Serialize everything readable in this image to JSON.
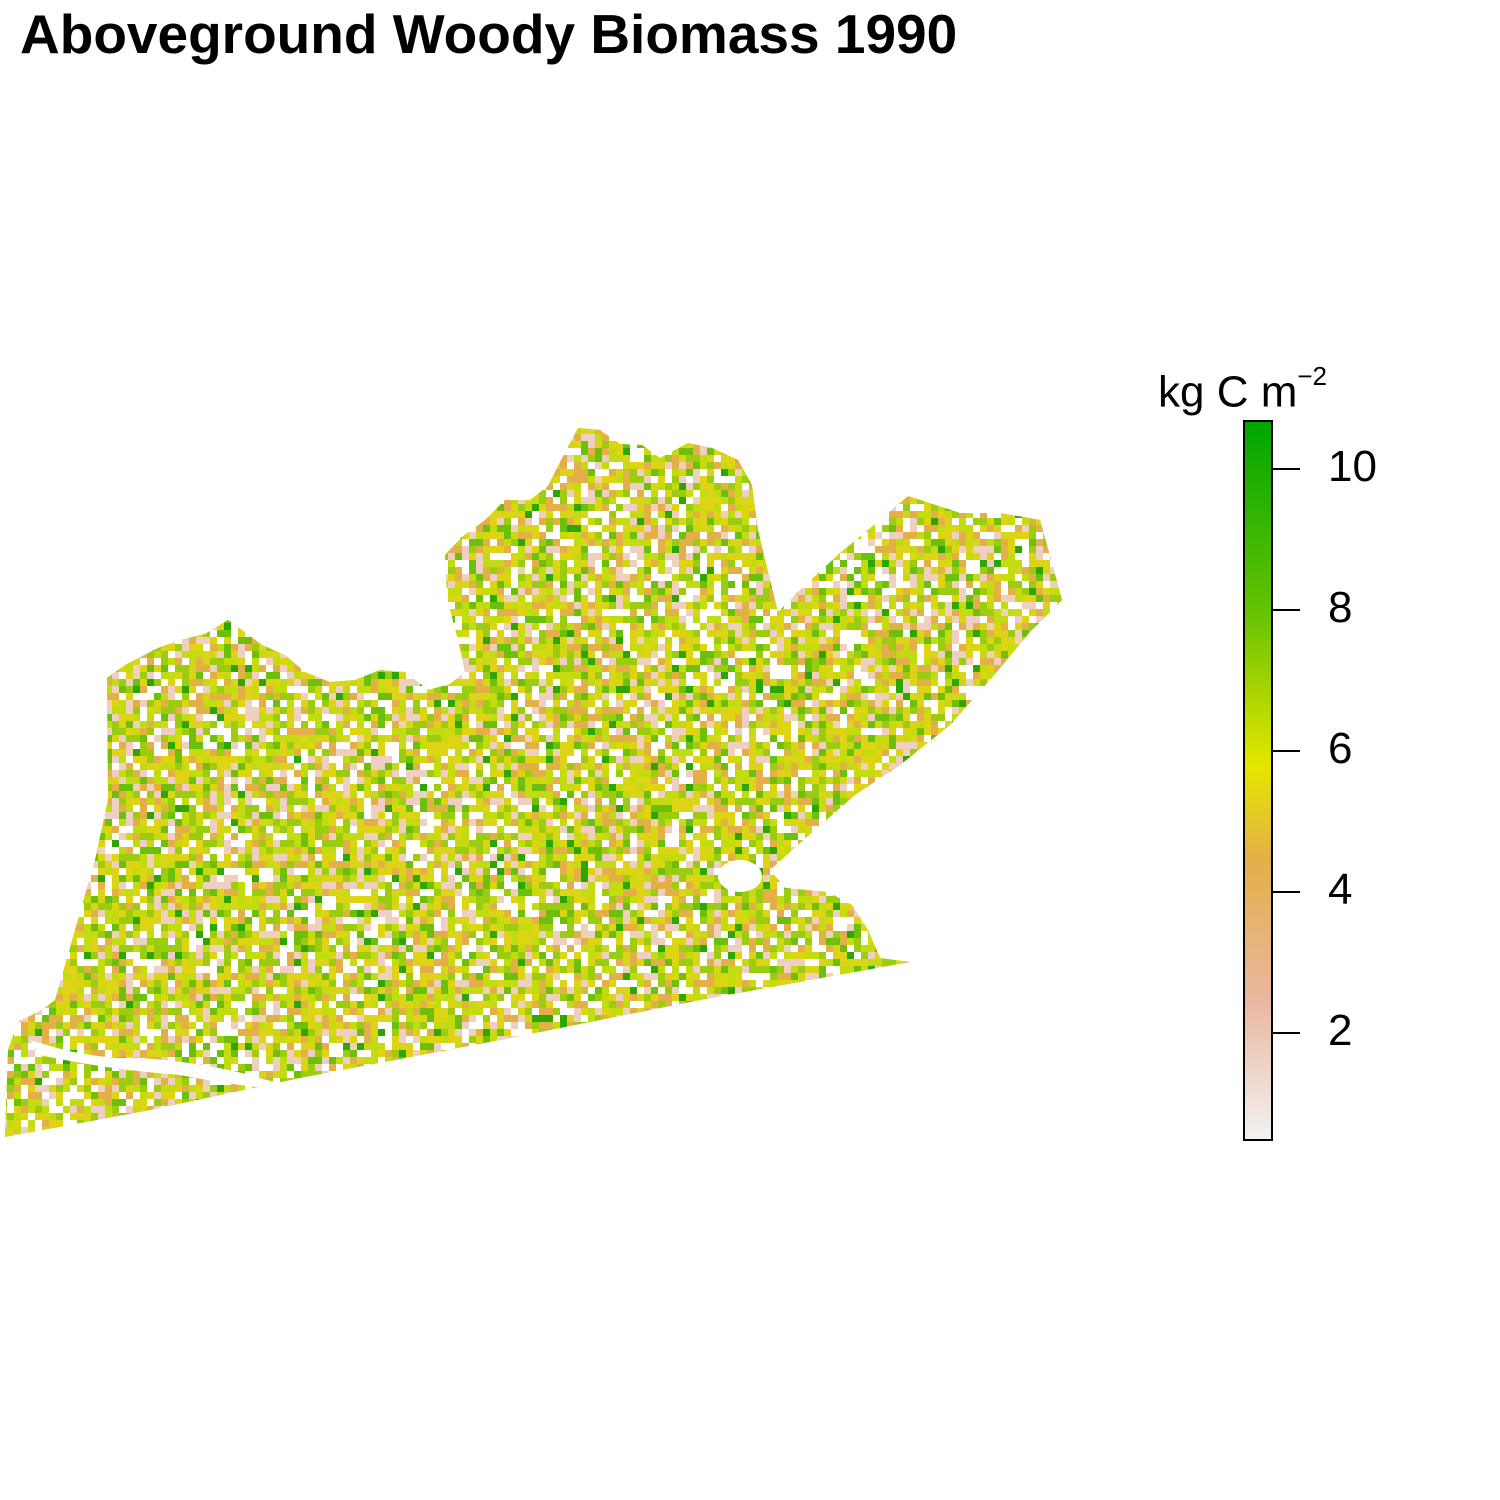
{
  "title": "Aboveground Woody Biomass 1990",
  "legend": {
    "unit_text": "kg C m",
    "unit_superscript": "−2",
    "range": [
      0.5,
      10.7
    ],
    "ticks": [
      {
        "value": 10,
        "label": "10"
      },
      {
        "value": 8,
        "label": "8"
      },
      {
        "value": 6,
        "label": "6"
      },
      {
        "value": 4,
        "label": "4"
      },
      {
        "value": 2,
        "label": "2"
      }
    ],
    "color_ramp": [
      {
        "value": 0.5,
        "color": "#f2f2f2"
      },
      {
        "value": 2.5,
        "color": "#eab69e"
      },
      {
        "value": 4.5,
        "color": "#e3b048"
      },
      {
        "value": 5.8,
        "color": "#e6e600"
      },
      {
        "value": 8.0,
        "color": "#66c205"
      },
      {
        "value": 10.7,
        "color": "#00a600"
      }
    ]
  },
  "map": {
    "background_color": "#ffffff",
    "palette": [
      "#ffffff",
      "#efcfc0",
      "#e3b048",
      "#dcd414",
      "#c3dc10",
      "#9ccc10",
      "#6cbf0a",
      "#2ea602"
    ],
    "palette_weights": [
      0.17,
      0.12,
      0.13,
      0.2,
      0.16,
      0.12,
      0.07,
      0.03
    ]
  }
}
